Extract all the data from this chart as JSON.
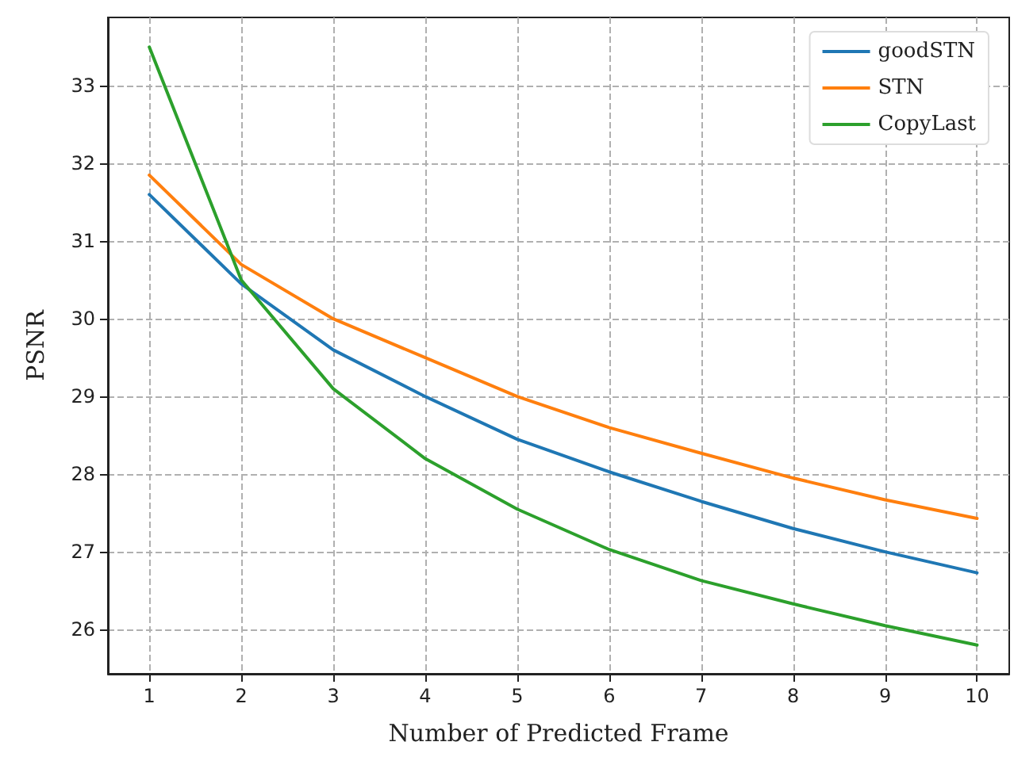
{
  "chart_data": {
    "type": "line",
    "xlabel": "Number of Predicted Frame",
    "ylabel": "PSNR",
    "x": [
      1,
      2,
      3,
      4,
      5,
      6,
      7,
      8,
      9,
      10
    ],
    "series": [
      {
        "name": "goodSTN",
        "color": "#1f77b4",
        "values": [
          31.6,
          30.45,
          29.6,
          29.0,
          28.45,
          28.03,
          27.65,
          27.3,
          27.0,
          26.73
        ]
      },
      {
        "name": "STN",
        "color": "#ff7f0e",
        "values": [
          31.85,
          30.7,
          30.0,
          29.5,
          29.0,
          28.6,
          28.27,
          27.95,
          27.67,
          27.43
        ]
      },
      {
        "name": "CopyLast",
        "color": "#2ca02c",
        "values": [
          33.5,
          30.5,
          29.1,
          28.2,
          27.55,
          27.03,
          26.63,
          26.33,
          26.05,
          25.8
        ]
      }
    ],
    "xlim": [
      0.55,
      10.35
    ],
    "xticks": [
      1,
      2,
      3,
      4,
      5,
      6,
      7,
      8,
      9,
      10
    ],
    "ylim": [
      25.43,
      33.88
    ],
    "yticks": [
      26,
      27,
      28,
      29,
      30,
      31,
      32,
      33
    ],
    "grid": true,
    "legend": "top right",
    "marker": "none",
    "line_style": "solid"
  }
}
